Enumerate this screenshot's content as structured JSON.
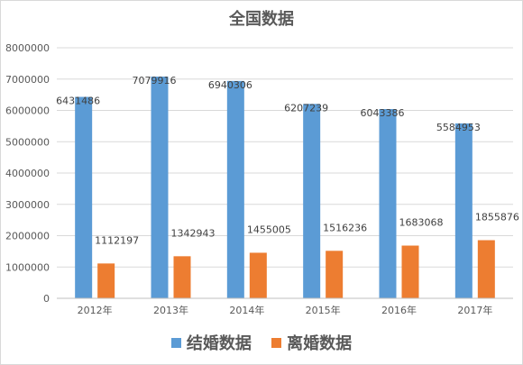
{
  "chart_data": {
    "type": "bar",
    "title": "全国数据",
    "categories": [
      "2012年",
      "2013年",
      "2014年",
      "2015年",
      "2016年",
      "2017年"
    ],
    "series": [
      {
        "name": "结婚数据",
        "color": "#5b9bd5",
        "values": [
          6431486,
          7079916,
          6940306,
          6207239,
          6043386,
          5584953
        ]
      },
      {
        "name": "离婚数据",
        "color": "#ed7d31",
        "values": [
          1112197,
          1342943,
          1455005,
          1516236,
          1683068,
          1855876
        ]
      }
    ],
    "ylim": [
      0,
      8000000
    ],
    "yticks": [
      "0",
      "1000000",
      "2000000",
      "3000000",
      "4000000",
      "5000000",
      "6000000",
      "7000000",
      "8000000"
    ],
    "grid": true,
    "legend_position": "bottom"
  }
}
